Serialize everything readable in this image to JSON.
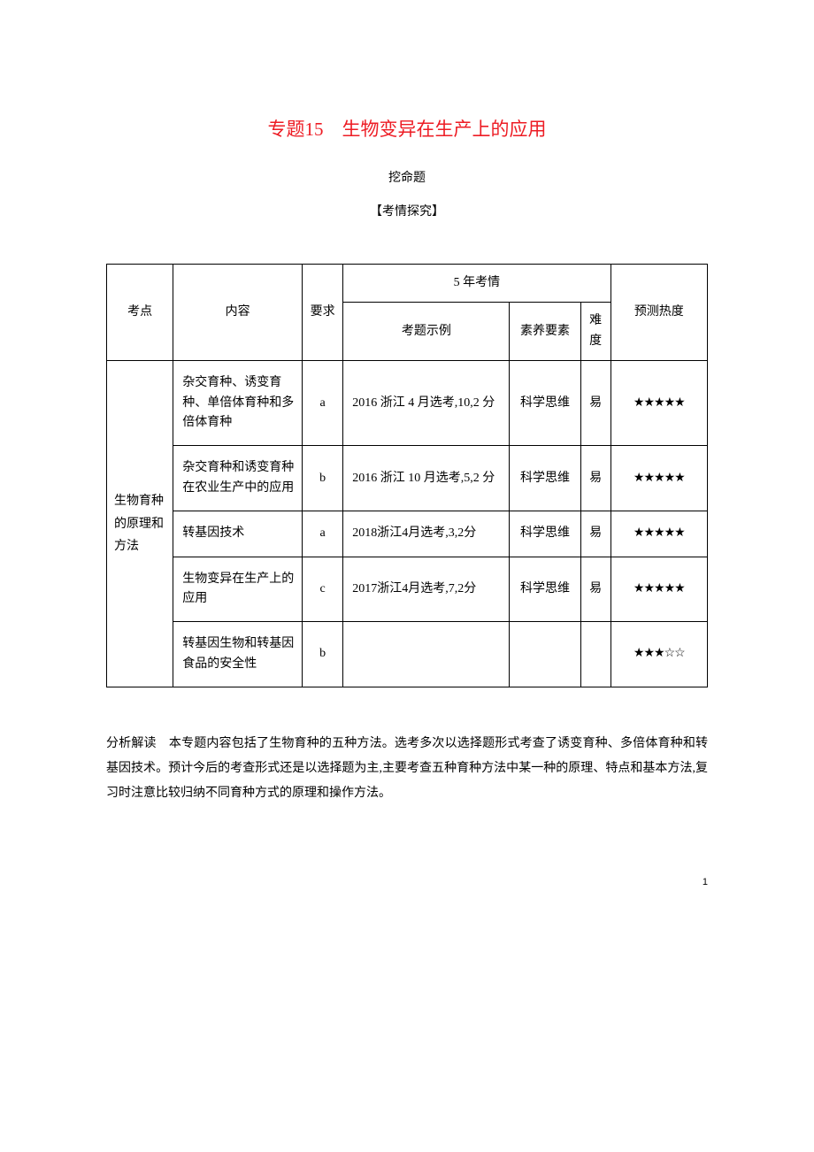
{
  "title": "专题15　生物变异在生产上的应用",
  "subheading1": "挖命题",
  "subheading2": "【考情探究】",
  "table": {
    "headers": {
      "kaodian": "考点",
      "neirong": "内容",
      "yaoqiu": "要求",
      "wunian": "5 年考情",
      "shili": "考题示例",
      "suyang": "素养要素",
      "nandu": "难度",
      "redu": "预测热度"
    },
    "kaodian_label": "生物育种的原理和方法",
    "rows": [
      {
        "content": "杂交育种、诱变育种、单倍体育种和多倍体育种",
        "req": "a",
        "example": "2016 浙江 4 月选考,10,2 分",
        "suyang": "科学思维",
        "nandu": "易",
        "stars": "★★★★★"
      },
      {
        "content": "杂交育种和诱变育种在农业生产中的应用",
        "req": "b",
        "example": "2016 浙江 10 月选考,5,2 分",
        "suyang": "科学思维",
        "nandu": "易",
        "stars": "★★★★★"
      },
      {
        "content": "转基因技术",
        "req": "a",
        "example": "2018浙江4月选考,3,2分",
        "suyang": "科学思维",
        "nandu": "易",
        "stars": "★★★★★"
      },
      {
        "content": "生物变异在生产上的应用",
        "req": "c",
        "example": "2017浙江4月选考,7,2分",
        "suyang": "科学思维",
        "nandu": "易",
        "stars": "★★★★★"
      },
      {
        "content": "转基因生物和转基因食品的安全性",
        "req": "b",
        "example": "",
        "suyang": "",
        "nandu": "",
        "stars": "★★★☆☆"
      }
    ]
  },
  "analysis": "分析解读　本专题内容包括了生物育种的五种方法。选考多次以选择题形式考查了诱变育种、多倍体育种和转基因技术。预计今后的考查形式还是以选择题为主,主要考查五种育种方法中某一种的原理、特点和基本方法,复习时注意比较归纳不同育种方式的原理和操作方法。",
  "page_num": "1",
  "colors": {
    "title_color": "#ed1c24",
    "text_color": "#000000",
    "background_color": "#ffffff",
    "border_color": "#000000"
  },
  "typography": {
    "title_fontsize": 21,
    "body_fontsize": 14,
    "font_family": "SimSun"
  }
}
